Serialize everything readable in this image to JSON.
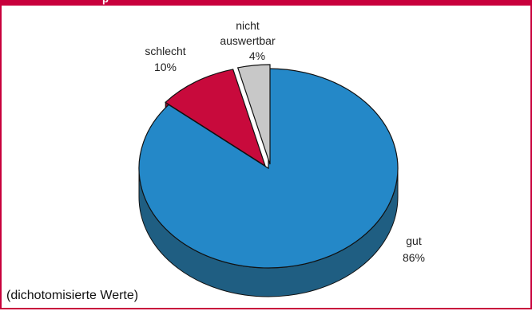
{
  "header": {
    "title_fragment": "p"
  },
  "footnote": "(dichotomisierte Werte)",
  "chart_data": {
    "type": "pie",
    "style": "3d",
    "title": "",
    "slices": [
      {
        "label": "gut",
        "value": 86,
        "value_label": "86%",
        "color": "#2488c8",
        "side_color": "#1f5e82"
      },
      {
        "label": "schlecht",
        "value": 10,
        "value_label": "10%",
        "color": "#c80a3c",
        "side_color": "#8a0a2a"
      },
      {
        "label_lines": [
          "nicht",
          "auswertbar"
        ],
        "value": 4,
        "value_label": "4%",
        "color": "#c8c8c8",
        "side_color": "#8c8c8c"
      }
    ]
  }
}
